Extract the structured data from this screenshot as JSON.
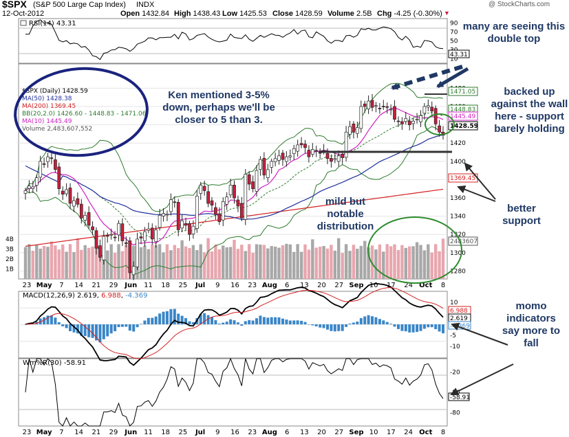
{
  "header": {
    "symbol": "$SPX",
    "name": "(S&P 500 Large Cap Index)",
    "exchange": "INDX",
    "date": "12-Oct-2012",
    "open_label": "Open",
    "open": "1432.84",
    "high_label": "High",
    "high": "1438.43",
    "low_label": "Low",
    "low": "1425.53",
    "close_label": "Close",
    "close": "1428.59",
    "volume_label": "Volume",
    "volume": "2.5B",
    "chg_label": "Chg",
    "chg": "-4.25 (-0.30%)",
    "watermark": "@ StockCharts.com"
  },
  "rsi_panel": {
    "label": "RSI(14) 43.31",
    "ticks": [
      "90",
      "70",
      "50",
      "30",
      "10"
    ],
    "last_value": "43.31"
  },
  "price_panel": {
    "legend": [
      {
        "text": "$SPX (Daily) 1428.59",
        "color": "#000000"
      },
      {
        "text": "MA(50) 1428.38",
        "color": "#1f2f9a"
      },
      {
        "text": "MA(200) 1369.45",
        "color": "#d42020"
      },
      {
        "text": "BB(20,2.0) 1426.60 - 1448.83 - 1471.06",
        "color": "#2c7a2c"
      },
      {
        "text": "MA(10) 1445.49",
        "color": "#d020c0"
      },
      {
        "text": "Volume 2,483,607,552",
        "color": "#555555"
      }
    ],
    "price_ticks": [
      "1480",
      "1460",
      "1440",
      "1420",
      "1400",
      "1380",
      "1360",
      "1340",
      "1320",
      "1300",
      "1280"
    ],
    "volume_ticks": [
      "4B",
      "3B",
      "2B",
      "1B"
    ],
    "value_tags": [
      {
        "text": "1471.05",
        "color": "#2c7a2c"
      },
      {
        "text": "1448.83",
        "color": "#2c7a2c"
      },
      {
        "text": "1445.49",
        "color": "#d020c0"
      },
      {
        "text": "1428.59",
        "color": "#000000"
      },
      {
        "text": "1369.45",
        "color": "#d42020"
      },
      {
        "text": "2483607",
        "color": "#555555"
      }
    ],
    "x_labels": [
      "23",
      "May",
      "7",
      "14",
      "21",
      "29",
      "Jun",
      "11",
      "18",
      "25",
      "Jul",
      "9",
      "16",
      "23",
      "Aug",
      "6",
      "13",
      "20",
      "27",
      "Sep",
      "10",
      "17",
      "24",
      "Oct",
      "8"
    ]
  },
  "macd_panel": {
    "label_prefix": "MACD(12,26,9)",
    "macd": "2.619",
    "signal": "6.988",
    "hist": "-4.369",
    "ticks": [
      "10",
      "5",
      "0",
      "-5",
      "-10"
    ],
    "tags": [
      {
        "text": "6.988",
        "color": "#d42020"
      },
      {
        "text": "2.619",
        "color": "#000000"
      },
      {
        "text": "-4.369",
        "color": "#3a86c8"
      }
    ]
  },
  "willr_panel": {
    "label": "Wm%R(30) -58.91",
    "ticks": [
      "-20",
      "-50",
      "-80"
    ],
    "last_value": "-58.91"
  },
  "annotations": {
    "double_top": "many are seeing this double top",
    "ken": "Ken mentioned 3-5% down, perhaps we'll be closer to 5 than 3.",
    "backed_up": "backed up against the wall here - support barely holding",
    "better_support": "better support",
    "distribution": "mild but notable distribution",
    "momo": "momo indicators say more to fall"
  },
  "colors": {
    "annotation_text": "#1f3864",
    "ellipse_navy": "#1a237e",
    "ellipse_green": "#2e8b2e",
    "arrow_dark": "#1f3864",
    "up_candle": "#ffffff",
    "down_candle": "#c81e3c",
    "ma50": "#1f2f9a",
    "ma200": "#d42020",
    "bb": "#2c7a2c",
    "ma10": "#d020c0",
    "volume_up": "#a8a8a8",
    "volume_down": "#e8a6ae",
    "macd_hist": "#3a86c8",
    "rsi_fill_high": "#2c7a2c",
    "rsi_fill_low": "#c81e3c"
  },
  "chart_data": {
    "type": "candlestick",
    "title": "$SPX (S&P 500 Large Cap Index) INDX",
    "x_range": [
      "2012-04-23",
      "2012-10-12"
    ],
    "ylim_price": [
      1270,
      1490
    ],
    "ylim_volume": [
      0,
      6
    ],
    "ylim_rsi": [
      0,
      100
    ],
    "ylim_macd": [
      -14,
      14
    ],
    "ylim_willr": [
      -100,
      0
    ],
    "key_levels": {
      "resistance": 1471.05,
      "support": 1400,
      "ma200": 1369.45
    },
    "closes": [
      1368,
      1373,
      1372,
      1382,
      1400,
      1397,
      1405,
      1403,
      1391,
      1370,
      1364,
      1369,
      1354,
      1357,
      1353,
      1338,
      1341,
      1330,
      1325,
      1305,
      1295,
      1318,
      1318,
      1320,
      1317,
      1332,
      1313,
      1310,
      1278,
      1285,
      1315,
      1316,
      1323,
      1326,
      1315,
      1325,
      1341,
      1343,
      1342,
      1358,
      1355,
      1325,
      1335,
      1330,
      1320,
      1329,
      1362,
      1374,
      1368,
      1354,
      1352,
      1342,
      1334,
      1356,
      1361,
      1374,
      1360,
      1351,
      1338,
      1386,
      1375,
      1370,
      1390,
      1402,
      1385,
      1391,
      1400,
      1403,
      1406,
      1402,
      1405,
      1406,
      1414,
      1418,
      1418,
      1415,
      1405,
      1413,
      1411,
      1409,
      1411,
      1403,
      1400,
      1403,
      1406,
      1404,
      1432,
      1438,
      1432,
      1437,
      1460,
      1460,
      1466,
      1459,
      1461,
      1458,
      1460,
      1459,
      1457,
      1446,
      1444,
      1441,
      1447,
      1440,
      1444,
      1446,
      1450,
      1460,
      1461,
      1455,
      1441,
      1432,
      1428.59
    ],
    "series": [
      {
        "name": "MA(50)",
        "last": 1428.38
      },
      {
        "name": "MA(200)",
        "last": 1369.45
      },
      {
        "name": "BB(20,2.0)",
        "values": [
          1426.6,
          1448.83,
          1471.06
        ]
      },
      {
        "name": "MA(10)",
        "last": 1445.49
      },
      {
        "name": "Volume",
        "last": 2483607552
      },
      {
        "name": "RSI(14)",
        "last": 43.31
      },
      {
        "name": "MACD(12,26,9)",
        "values": [
          2.619,
          6.988,
          -4.369
        ]
      },
      {
        "name": "Wm%R(30)",
        "last": -58.91
      }
    ]
  }
}
